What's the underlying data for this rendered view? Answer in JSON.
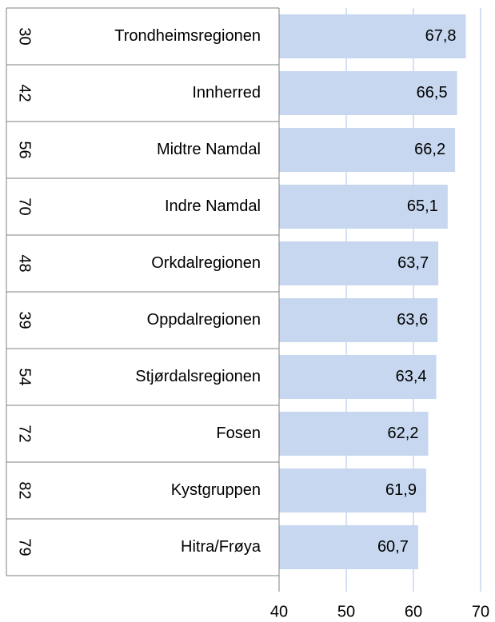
{
  "chart_data": {
    "type": "bar",
    "orientation": "horizontal",
    "category_codes": [
      "30",
      "42",
      "56",
      "70",
      "48",
      "39",
      "54",
      "72",
      "82",
      "79"
    ],
    "categories": [
      "Trondheimsregionen",
      "Innherred",
      "Midtre Namdal",
      "Indre Namdal",
      "Orkdalregionen",
      "Oppdalregionen",
      "Stjørdalsregionen",
      "Fosen",
      "Kystgruppen",
      "Hitra/Frøya"
    ],
    "values": [
      67.8,
      66.5,
      66.2,
      65.1,
      63.7,
      63.6,
      63.4,
      62.2,
      61.9,
      60.7
    ],
    "value_labels": [
      "67,8",
      "66,5",
      "66,2",
      "65,1",
      "63,7",
      "63,6",
      "63,4",
      "62,2",
      "61,9",
      "60,7"
    ],
    "color": "#c6d7ef",
    "xlim": [
      40,
      70
    ],
    "xticks": [
      40,
      50,
      60,
      70
    ],
    "grid": true
  }
}
